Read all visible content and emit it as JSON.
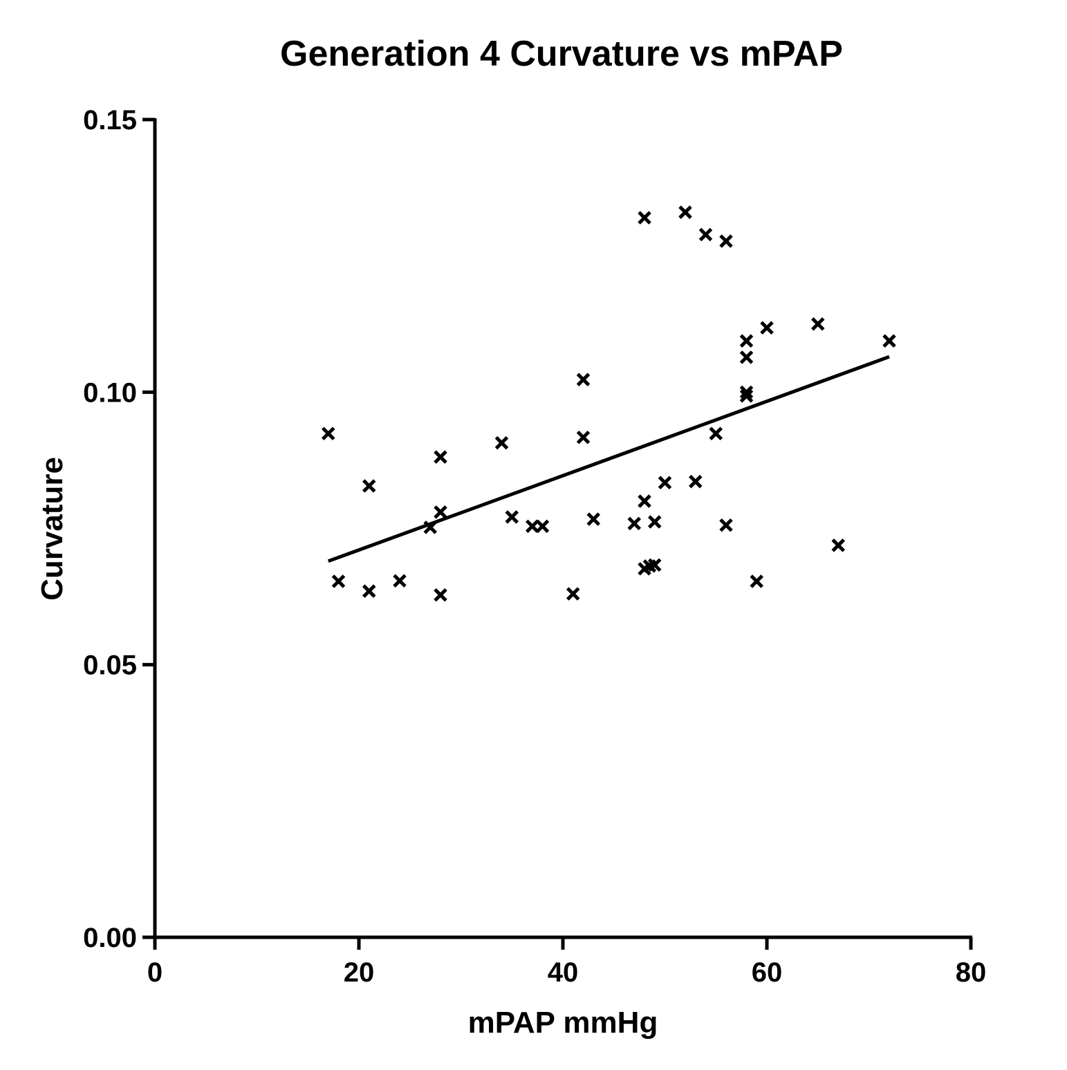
{
  "chart_data": {
    "type": "scatter",
    "title": "Generation 4 Curvature vs mPAP",
    "xlabel": "mPAP mmHg",
    "ylabel": "Curvature",
    "xlim": [
      0,
      80
    ],
    "ylim": [
      0,
      0.15
    ],
    "xticks": [
      0,
      20,
      40,
      60,
      80
    ],
    "xtick_labels": [
      "0",
      "20",
      "40",
      "60",
      "80"
    ],
    "yticks": [
      0,
      0.05,
      0.1,
      0.15
    ],
    "ytick_labels": [
      "0.00",
      "0.05",
      "0.10",
      "0.15"
    ],
    "grid": false,
    "marker": "x",
    "color": "#000000",
    "points": [
      [
        17,
        0.0924
      ],
      [
        18,
        0.0653
      ],
      [
        21,
        0.0828
      ],
      [
        21,
        0.0635
      ],
      [
        24,
        0.0654
      ],
      [
        27,
        0.0752
      ],
      [
        28,
        0.0881
      ],
      [
        28,
        0.078
      ],
      [
        28,
        0.0628
      ],
      [
        34,
        0.0907
      ],
      [
        35,
        0.0771
      ],
      [
        37,
        0.0754
      ],
      [
        38,
        0.0754
      ],
      [
        41,
        0.063
      ],
      [
        42,
        0.1023
      ],
      [
        42,
        0.0917
      ],
      [
        43,
        0.0767
      ],
      [
        47,
        0.0759
      ],
      [
        48,
        0.132
      ],
      [
        48,
        0.08
      ],
      [
        48,
        0.0676
      ],
      [
        49,
        0.0762
      ],
      [
        48.5,
        0.0681
      ],
      [
        49,
        0.0683
      ],
      [
        50,
        0.0834
      ],
      [
        52,
        0.133
      ],
      [
        53,
        0.0836
      ],
      [
        54,
        0.1289
      ],
      [
        55,
        0.0924
      ],
      [
        56,
        0.1277
      ],
      [
        56,
        0.0756
      ],
      [
        58,
        0.1094
      ],
      [
        58,
        0.1064
      ],
      [
        58,
        0.1
      ],
      [
        58,
        0.0993
      ],
      [
        59,
        0.0653
      ],
      [
        60,
        0.1118
      ],
      [
        65,
        0.1125
      ],
      [
        67,
        0.0719
      ],
      [
        72,
        0.1094
      ]
    ],
    "fit_line": {
      "x": [
        17,
        72
      ],
      "y": [
        0.069,
        0.1065
      ]
    }
  }
}
